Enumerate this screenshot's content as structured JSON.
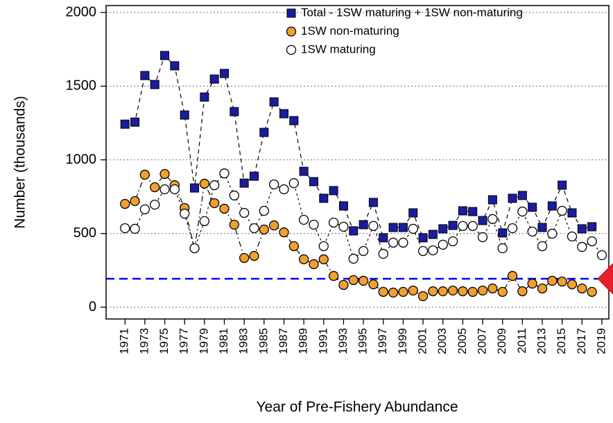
{
  "chart_data": {
    "type": "scatter",
    "xlabel": "Year of Pre-Fishery Abundance",
    "ylabel": "Number (thousands)",
    "x": [
      1971,
      1972,
      1973,
      1974,
      1975,
      1976,
      1977,
      1978,
      1979,
      1980,
      1981,
      1982,
      1983,
      1984,
      1985,
      1986,
      1987,
      1988,
      1989,
      1990,
      1991,
      1992,
      1993,
      1994,
      1995,
      1996,
      1997,
      1998,
      1999,
      2000,
      2001,
      2002,
      2003,
      2004,
      2005,
      2006,
      2007,
      2008,
      2009,
      2010,
      2011,
      2012,
      2013,
      2014,
      2015,
      2016,
      2017,
      2018,
      2019
    ],
    "xlim": [
      1969.1,
      2019.7
    ],
    "xticks": [
      1971,
      1973,
      1975,
      1977,
      1979,
      1981,
      1983,
      1985,
      1987,
      1989,
      1991,
      1993,
      1995,
      1997,
      1999,
      2001,
      2003,
      2005,
      2007,
      2009,
      2011,
      2013,
      2015,
      2017,
      2019
    ],
    "ylim": [
      -80,
      2047
    ],
    "yticks": [
      0,
      500,
      1000,
      1500,
      2000
    ],
    "grid": true,
    "legend": "top right",
    "hline": {
      "value": 193,
      "color": "#0000ff"
    },
    "series": [
      {
        "name": "Total - 1SW maturing + 1SW non-maturing",
        "color": "#1c1c9e",
        "marker": "square",
        "values": [
          1242,
          1256,
          1572,
          1511,
          1708,
          1638,
          1304,
          809,
          1426,
          1548,
          1586,
          1327,
          842,
          889,
          1186,
          1393,
          1313,
          1266,
          922,
          852,
          739,
          791,
          687,
          518,
          560,
          711,
          471,
          541,
          541,
          640,
          471,
          494,
          532,
          555,
          654,
          649,
          588,
          729,
          504,
          739,
          758,
          678,
          541,
          687,
          828,
          640,
          532,
          546,
          null
        ]
      },
      {
        "name": "1SW non-maturing",
        "color": "#f0a030",
        "marker": "circle",
        "values": [
          701,
          720,
          899,
          814,
          904,
          828,
          673,
          400,
          838,
          706,
          668,
          560,
          334,
          348,
          527,
          555,
          508,
          414,
          325,
          292,
          325,
          212,
          151,
          184,
          179,
          155,
          104,
          99,
          104,
          113,
          75,
          108,
          108,
          113,
          108,
          104,
          113,
          127,
          104,
          212,
          108,
          160,
          127,
          179,
          174,
          155,
          127,
          104,
          null
        ]
      },
      {
        "name": "1SW maturing",
        "color": "#ffffff",
        "marker": "circle",
        "values": [
          536,
          532,
          664,
          696,
          800,
          800,
          635,
          400,
          584,
          828,
          908,
          758,
          640,
          536,
          654,
          833,
          800,
          842,
          593,
          560,
          414,
          574,
          546,
          329,
          381,
          551,
          362,
          438,
          438,
          532,
          381,
          386,
          424,
          447,
          551,
          551,
          475,
          598,
          400,
          536,
          649,
          513,
          414,
          499,
          654,
          480,
          409,
          447,
          353
        ]
      }
    ]
  }
}
